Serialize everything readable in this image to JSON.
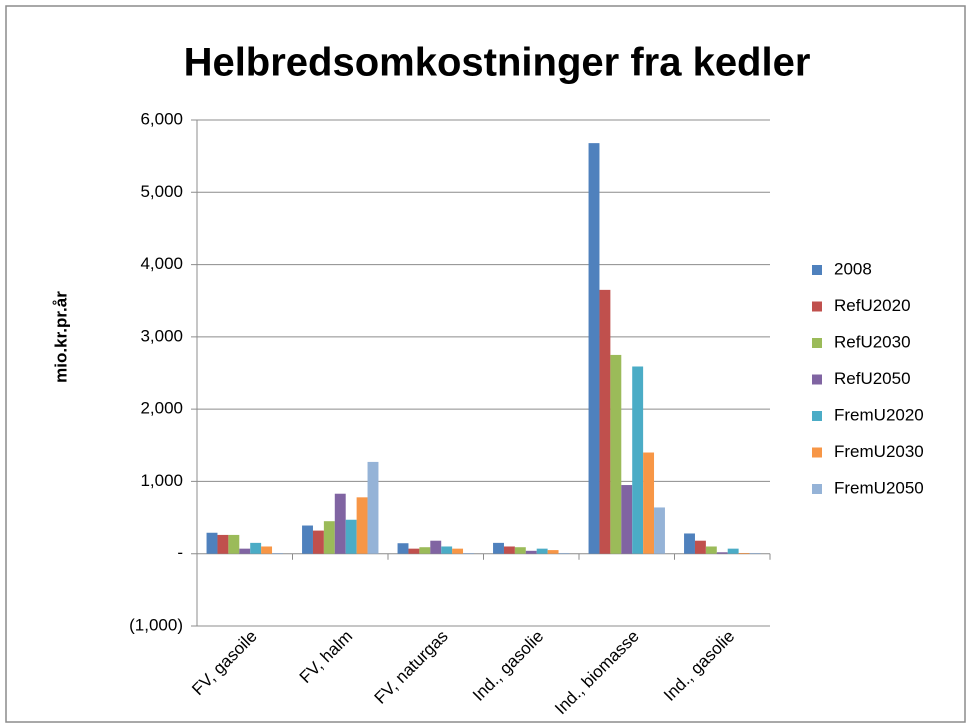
{
  "chart_data": {
    "type": "bar",
    "title": "Helbredsomkostninger fra kedler",
    "y_label": "mio.kr.pr.år",
    "categories": [
      "FV, gasoile",
      "FV, halm",
      "FV, naturgas",
      "Ind., gasolie",
      "Ind., biomasse",
      "Ind., gasolie"
    ],
    "series": [
      {
        "name": "2008",
        "color": "#4f81bd",
        "values": [
          290,
          390,
          145,
          150,
          5680,
          280
        ]
      },
      {
        "name": "RefU2020",
        "color": "#c0504d",
        "values": [
          260,
          320,
          70,
          100,
          3650,
          180
        ]
      },
      {
        "name": "RefU2030",
        "color": "#9bbb59",
        "values": [
          260,
          450,
          90,
          90,
          2750,
          100
        ]
      },
      {
        "name": "RefU2050",
        "color": "#8064a2",
        "values": [
          70,
          830,
          180,
          40,
          950,
          20
        ]
      },
      {
        "name": "FremU2020",
        "color": "#4bacc6",
        "values": [
          150,
          470,
          100,
          70,
          2590,
          70
        ]
      },
      {
        "name": "FremU2030",
        "color": "#f79646",
        "values": [
          100,
          780,
          70,
          50,
          1400,
          10
        ]
      },
      {
        "name": "FremU2050",
        "color": "#95b3d7",
        "values": [
          10,
          1270,
          10,
          10,
          640,
          10
        ]
      }
    ],
    "ylim": [
      -1000,
      6000
    ],
    "yticks": [
      {
        "value": -1000,
        "label": "(1,000)"
      },
      {
        "value": 0,
        "label": "-"
      },
      {
        "value": 1000,
        "label": "1,000"
      },
      {
        "value": 2000,
        "label": "2,000"
      },
      {
        "value": 3000,
        "label": "3,000"
      },
      {
        "value": 4000,
        "label": "4,000"
      },
      {
        "value": 5000,
        "label": "5,000"
      },
      {
        "value": 6000,
        "label": "6,000"
      }
    ],
    "grid": true,
    "legend": "right"
  }
}
